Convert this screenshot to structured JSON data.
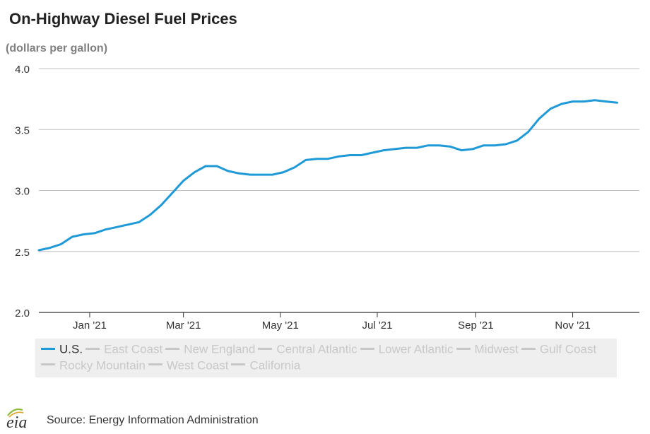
{
  "header": {
    "title": "On-Highway Diesel Fuel Prices",
    "subtitle": "(dollars per gallon)"
  },
  "chart_data": {
    "type": "line",
    "ylim": [
      2.0,
      4.0
    ],
    "y_ticks": [
      {
        "value": 2.0,
        "label": "2.0"
      },
      {
        "value": 2.5,
        "label": "2.5"
      },
      {
        "value": 3.0,
        "label": "3.0"
      },
      {
        "value": 3.5,
        "label": "3.5"
      },
      {
        "value": 4.0,
        "label": "4.0"
      }
    ],
    "xlim": [
      "2020-11-30",
      "2021-12-13"
    ],
    "x_ticks": [
      {
        "value": "2021-01-01",
        "label": "Jan '21"
      },
      {
        "value": "2021-03-01",
        "label": "Mar '21"
      },
      {
        "value": "2021-05-01",
        "label": "May '21"
      },
      {
        "value": "2021-07-01",
        "label": "Jul '21"
      },
      {
        "value": "2021-09-01",
        "label": "Sep '21"
      },
      {
        "value": "2021-11-01",
        "label": "Nov '21"
      }
    ],
    "grid": "horizontal",
    "legend_position": "bottom",
    "series": [
      {
        "name": "U.S.",
        "color": "#1f9ad6",
        "active": true,
        "points": [
          [
            "2020-11-30",
            2.51
          ],
          [
            "2020-12-07",
            2.53
          ],
          [
            "2020-12-14",
            2.56
          ],
          [
            "2020-12-21",
            2.62
          ],
          [
            "2020-12-28",
            2.64
          ],
          [
            "2021-01-04",
            2.65
          ],
          [
            "2021-01-11",
            2.68
          ],
          [
            "2021-01-18",
            2.7
          ],
          [
            "2021-01-25",
            2.72
          ],
          [
            "2021-02-01",
            2.74
          ],
          [
            "2021-02-08",
            2.8
          ],
          [
            "2021-02-15",
            2.88
          ],
          [
            "2021-02-22",
            2.98
          ],
          [
            "2021-03-01",
            3.08
          ],
          [
            "2021-03-08",
            3.15
          ],
          [
            "2021-03-15",
            3.2
          ],
          [
            "2021-03-22",
            3.2
          ],
          [
            "2021-03-29",
            3.16
          ],
          [
            "2021-04-05",
            3.14
          ],
          [
            "2021-04-12",
            3.13
          ],
          [
            "2021-04-19",
            3.13
          ],
          [
            "2021-04-26",
            3.13
          ],
          [
            "2021-05-03",
            3.15
          ],
          [
            "2021-05-10",
            3.19
          ],
          [
            "2021-05-17",
            3.25
          ],
          [
            "2021-05-24",
            3.26
          ],
          [
            "2021-05-31",
            3.26
          ],
          [
            "2021-06-07",
            3.28
          ],
          [
            "2021-06-14",
            3.29
          ],
          [
            "2021-06-21",
            3.29
          ],
          [
            "2021-06-28",
            3.31
          ],
          [
            "2021-07-05",
            3.33
          ],
          [
            "2021-07-12",
            3.34
          ],
          [
            "2021-07-19",
            3.35
          ],
          [
            "2021-07-26",
            3.35
          ],
          [
            "2021-08-02",
            3.37
          ],
          [
            "2021-08-09",
            3.37
          ],
          [
            "2021-08-16",
            3.36
          ],
          [
            "2021-08-23",
            3.33
          ],
          [
            "2021-08-30",
            3.34
          ],
          [
            "2021-09-06",
            3.37
          ],
          [
            "2021-09-13",
            3.37
          ],
          [
            "2021-09-20",
            3.38
          ],
          [
            "2021-09-27",
            3.41
          ],
          [
            "2021-10-04",
            3.48
          ],
          [
            "2021-10-11",
            3.59
          ],
          [
            "2021-10-18",
            3.67
          ],
          [
            "2021-10-25",
            3.71
          ],
          [
            "2021-11-01",
            3.73
          ],
          [
            "2021-11-08",
            3.73
          ],
          [
            "2021-11-15",
            3.74
          ],
          [
            "2021-11-22",
            3.73
          ],
          [
            "2021-11-29",
            3.72
          ]
        ]
      },
      {
        "name": "East Coast",
        "color": "#cccccc",
        "active": false,
        "points": []
      },
      {
        "name": "New England",
        "color": "#cccccc",
        "active": false,
        "points": []
      },
      {
        "name": "Central Atlantic",
        "color": "#cccccc",
        "active": false,
        "points": []
      },
      {
        "name": "Lower Atlantic",
        "color": "#cccccc",
        "active": false,
        "points": []
      },
      {
        "name": "Midwest",
        "color": "#cccccc",
        "active": false,
        "points": []
      },
      {
        "name": "Gulf Coast",
        "color": "#cccccc",
        "active": false,
        "points": []
      },
      {
        "name": "Rocky Mountain",
        "color": "#cccccc",
        "active": false,
        "points": []
      },
      {
        "name": "West Coast",
        "color": "#cccccc",
        "active": false,
        "points": []
      },
      {
        "name": "California",
        "color": "#cccccc",
        "active": false,
        "points": []
      }
    ]
  },
  "footer": {
    "logo_text": "eia",
    "logo_icon": "eia-logo-icon",
    "source": "Source: Energy Information Administration"
  },
  "colors": {
    "grid": "#c0c0c0",
    "axis": "#333333",
    "legend_bg": "#efefef",
    "legend_inactive_text": "#c8c8c8",
    "legend_active_text": "#333333",
    "logo_green": "#8dbb3c",
    "logo_gold": "#e0a82e"
  }
}
